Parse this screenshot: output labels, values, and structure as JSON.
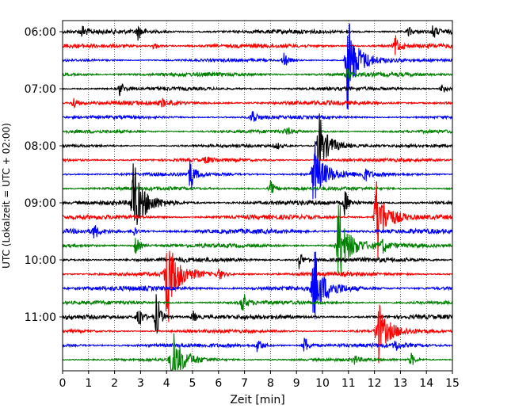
{
  "chart_data": {
    "type": "line",
    "title": "",
    "xlabel": "Zeit  [min]",
    "ylabel": "UTC (Lokalzeit = UTC + 02:00)",
    "xlim": [
      0,
      15
    ],
    "x_ticks": [
      0,
      1,
      2,
      3,
      4,
      5,
      6,
      7,
      8,
      9,
      10,
      11,
      12,
      13,
      14,
      15
    ],
    "x_tick_labels": [
      "0",
      "1",
      "2",
      "3",
      "4",
      "5",
      "6",
      "7",
      "8",
      "9",
      "10",
      "11",
      "12",
      "13",
      "14",
      "15"
    ],
    "y_tick_labels": [
      "06:00",
      "07:00",
      "08:00",
      "09:00",
      "10:00",
      "11:00"
    ],
    "grid": "vertical dotted",
    "trace_interval_minutes": 15,
    "trace_colors": [
      "#000000",
      "#ff0000",
      "#0000ff",
      "#008000"
    ],
    "traces": [
      {
        "start": "06:00",
        "color": "#000000",
        "events": [
          {
            "t": 0.75,
            "amp": 0.5
          },
          {
            "t": 2.9,
            "amp": 0.6
          },
          {
            "t": 13.3,
            "amp": 0.4
          },
          {
            "t": 14.25,
            "amp": 0.6
          }
        ]
      },
      {
        "start": "06:15",
        "color": "#ff0000",
        "events": [
          {
            "t": 12.8,
            "amp": 0.9
          },
          {
            "t": 3.5,
            "amp": 0.3
          }
        ]
      },
      {
        "start": "06:30",
        "color": "#0000ff",
        "events": [
          {
            "t": 10.95,
            "amp": 4.5
          },
          {
            "t": 8.5,
            "amp": 0.7
          }
        ]
      },
      {
        "start": "06:45",
        "color": "#008000",
        "events": [
          {
            "t": 10.95,
            "amp": 0.5
          }
        ]
      },
      {
        "start": "07:00",
        "color": "#000000",
        "events": [
          {
            "t": 2.2,
            "amp": 0.6
          },
          {
            "t": 14.6,
            "amp": 0.5
          }
        ]
      },
      {
        "start": "07:15",
        "color": "#ff0000",
        "events": [
          {
            "t": 0.4,
            "amp": 0.6
          },
          {
            "t": 3.8,
            "amp": 0.3
          }
        ]
      },
      {
        "start": "07:30",
        "color": "#0000ff",
        "events": [
          {
            "t": 7.3,
            "amp": 0.8
          }
        ]
      },
      {
        "start": "07:45",
        "color": "#008000",
        "events": [
          {
            "t": 8.6,
            "amp": 0.3
          }
        ]
      },
      {
        "start": "08:00",
        "color": "#000000",
        "events": [
          {
            "t": 9.85,
            "amp": 3.0
          },
          {
            "t": 8.2,
            "amp": 0.3
          }
        ]
      },
      {
        "start": "08:15",
        "color": "#ff0000",
        "events": [
          {
            "t": 5.5,
            "amp": 0.3
          }
        ]
      },
      {
        "start": "08:30",
        "color": "#0000ff",
        "events": [
          {
            "t": 9.65,
            "amp": 3.2
          },
          {
            "t": 4.9,
            "amp": 1.4
          },
          {
            "t": 11.6,
            "amp": 0.6
          }
        ]
      },
      {
        "start": "08:45",
        "color": "#008000",
        "events": [
          {
            "t": 8.0,
            "amp": 0.6
          }
        ]
      },
      {
        "start": "09:00",
        "color": "#000000",
        "events": [
          {
            "t": 2.7,
            "amp": 4.0
          },
          {
            "t": 10.85,
            "amp": 1.0
          }
        ]
      },
      {
        "start": "09:15",
        "color": "#ff0000",
        "events": [
          {
            "t": 12.05,
            "amp": 4.0
          }
        ]
      },
      {
        "start": "09:30",
        "color": "#0000ff",
        "events": [
          {
            "t": 1.2,
            "amp": 0.6
          },
          {
            "t": 2.7,
            "amp": 0.4
          }
        ]
      },
      {
        "start": "09:45",
        "color": "#008000",
        "events": [
          {
            "t": 10.6,
            "amp": 4.0
          },
          {
            "t": 2.8,
            "amp": 0.8
          },
          {
            "t": 12.3,
            "amp": 0.6
          }
        ]
      },
      {
        "start": "10:00",
        "color": "#000000",
        "events": [
          {
            "t": 9.1,
            "amp": 0.7
          }
        ]
      },
      {
        "start": "10:15",
        "color": "#ff0000",
        "events": [
          {
            "t": 4.0,
            "amp": 4.5
          },
          {
            "t": 6.0,
            "amp": 0.5
          }
        ]
      },
      {
        "start": "10:30",
        "color": "#0000ff",
        "events": [
          {
            "t": 9.65,
            "amp": 3.5
          }
        ]
      },
      {
        "start": "10:45",
        "color": "#008000",
        "events": [
          {
            "t": 6.9,
            "amp": 1.0
          }
        ]
      },
      {
        "start": "11:00",
        "color": "#000000",
        "events": [
          {
            "t": 3.6,
            "amp": 2.0
          },
          {
            "t": 2.9,
            "amp": 1.2
          },
          {
            "t": 5.0,
            "amp": 0.5
          }
        ]
      },
      {
        "start": "11:15",
        "color": "#ff0000",
        "events": [
          {
            "t": 12.1,
            "amp": 3.0
          }
        ]
      },
      {
        "start": "11:30",
        "color": "#0000ff",
        "events": [
          {
            "t": 7.5,
            "amp": 0.7
          },
          {
            "t": 9.3,
            "amp": 0.8
          },
          {
            "t": 12.8,
            "amp": 0.5
          }
        ]
      },
      {
        "start": "11:45",
        "color": "#008000",
        "events": [
          {
            "t": 4.2,
            "amp": 3.0
          },
          {
            "t": 13.4,
            "amp": 0.6
          },
          {
            "t": 11.2,
            "amp": 0.4
          }
        ]
      }
    ]
  }
}
